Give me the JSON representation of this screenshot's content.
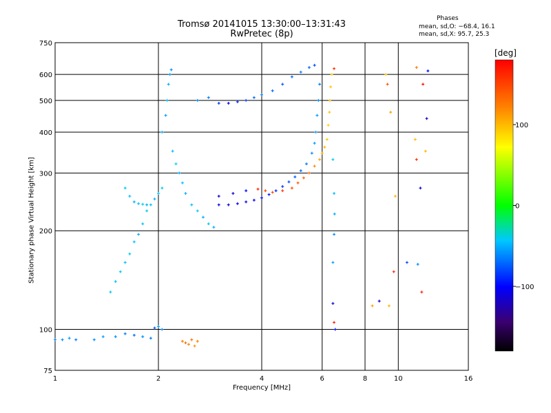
{
  "chart_data": {
    "type": "scatter",
    "title": "Tromsø 20141015 13:30:00–13:31:43",
    "subtitle": "RwPretec (8p)",
    "phase_box": {
      "heading": "Phases",
      "line_o": "mean, sd,O: −68.4, 16.1",
      "line_x": "mean, sd,X:  95.7, 25.3"
    },
    "xlabel": "Frequency [MHz]",
    "ylabel": "Stationary phase Virtual Height [km]",
    "xscale": "log",
    "yscale": "log",
    "xlim": [
      1,
      16
    ],
    "ylim": [
      75,
      750
    ],
    "x_ticks": [
      1,
      2,
      4,
      6,
      8,
      10,
      16
    ],
    "x_tick_labels": [
      "1",
      "2",
      "4",
      "6",
      "8",
      "10",
      "16"
    ],
    "y_ticks": [
      75,
      100,
      200,
      300,
      400,
      500,
      600,
      750
    ],
    "y_tick_labels": [
      "75",
      "100",
      "200",
      "300",
      "400",
      "500",
      "600",
      "750"
    ],
    "grid": true,
    "colorbar": {
      "label": "[deg]",
      "range": [
        -180,
        180
      ],
      "ticks": [
        100,
        0,
        -100
      ],
      "tick_labels": [
        "100",
        "0",
        "−100"
      ]
    },
    "point_size_note": "small colored crosses",
    "series": [
      {
        "values": [
          [
            1.0,
            93,
            -60
          ],
          [
            1.05,
            93,
            -60
          ],
          [
            1.1,
            94,
            -55
          ],
          [
            1.15,
            93,
            -65
          ],
          [
            1.3,
            93,
            -60
          ],
          [
            1.38,
            95,
            -55
          ],
          [
            1.5,
            95,
            -60
          ],
          [
            1.6,
            97,
            -65
          ],
          [
            1.7,
            96,
            -70
          ],
          [
            1.8,
            95,
            -60
          ],
          [
            1.9,
            94,
            -65
          ],
          [
            1.95,
            101,
            -75
          ],
          [
            2.0,
            102,
            -55
          ],
          [
            2.05,
            100,
            -60
          ]
        ]
      },
      {
        "values": [
          [
            2.35,
            92,
            125
          ],
          [
            2.4,
            91,
            130
          ],
          [
            2.45,
            90,
            120
          ],
          [
            2.5,
            93,
            128
          ],
          [
            2.55,
            89,
            115
          ],
          [
            2.6,
            92,
            122
          ]
        ]
      },
      {
        "values": [
          [
            1.45,
            130,
            -40
          ],
          [
            1.5,
            140,
            -45
          ],
          [
            1.55,
            150,
            -40
          ],
          [
            1.6,
            160,
            -45
          ],
          [
            1.65,
            170,
            -40
          ],
          [
            1.7,
            185,
            -45
          ],
          [
            1.75,
            195,
            -50
          ],
          [
            1.8,
            210,
            -45
          ],
          [
            1.85,
            230,
            -40
          ],
          [
            1.9,
            240,
            -45
          ],
          [
            1.95,
            250,
            -50
          ],
          [
            2.0,
            260,
            -45
          ],
          [
            2.05,
            270,
            -40
          ]
        ]
      },
      {
        "values": [
          [
            1.6,
            270,
            -40
          ],
          [
            1.65,
            255,
            -45
          ],
          [
            1.7,
            245,
            -50
          ],
          [
            1.75,
            242,
            -45
          ],
          [
            1.8,
            241,
            -40
          ],
          [
            1.85,
            240,
            -50
          ]
        ]
      },
      {
        "values": [
          [
            2.05,
            400,
            -50
          ],
          [
            2.1,
            450,
            -55
          ],
          [
            2.12,
            500,
            -45
          ],
          [
            2.14,
            560,
            -50
          ],
          [
            2.16,
            600,
            -55
          ],
          [
            2.18,
            620,
            -60
          ],
          [
            2.2,
            350,
            -45
          ],
          [
            2.25,
            320,
            -40
          ],
          [
            2.3,
            300,
            -50
          ],
          [
            2.35,
            280,
            -45
          ],
          [
            2.4,
            260,
            -50
          ],
          [
            2.5,
            240,
            -45
          ],
          [
            2.6,
            230,
            -40
          ],
          [
            2.7,
            220,
            -50
          ],
          [
            2.8,
            210,
            -45
          ],
          [
            2.9,
            205,
            -50
          ]
        ]
      },
      {
        "values": [
          [
            2.6,
            500,
            -60
          ],
          [
            2.8,
            510,
            -65
          ],
          [
            3.0,
            490,
            -85
          ],
          [
            3.2,
            490,
            -100
          ],
          [
            3.4,
            495,
            -90
          ],
          [
            3.6,
            500,
            -80
          ],
          [
            3.8,
            510,
            -70
          ],
          [
            4.0,
            520,
            -65
          ],
          [
            4.3,
            535,
            -70
          ],
          [
            4.6,
            560,
            -75
          ],
          [
            4.9,
            590,
            -70
          ],
          [
            5.2,
            610,
            -65
          ],
          [
            5.5,
            630,
            -70
          ],
          [
            5.7,
            640,
            -80
          ]
        ]
      },
      {
        "values": [
          [
            3.0,
            240,
            -110
          ],
          [
            3.2,
            240,
            -115
          ],
          [
            3.4,
            242,
            -100
          ],
          [
            3.6,
            245,
            -110
          ],
          [
            3.8,
            248,
            -105
          ],
          [
            4.0,
            252,
            -100
          ],
          [
            4.2,
            258,
            -95
          ],
          [
            4.4,
            265,
            -90
          ],
          [
            4.6,
            273,
            -85
          ],
          [
            4.8,
            282,
            -80
          ],
          [
            5.0,
            292,
            -75
          ],
          [
            5.2,
            305,
            -70
          ],
          [
            5.4,
            320,
            -65
          ],
          [
            5.6,
            345,
            -60
          ],
          [
            5.7,
            370,
            -55
          ],
          [
            5.75,
            400,
            -55
          ],
          [
            5.8,
            450,
            -55
          ],
          [
            5.85,
            500,
            -60
          ],
          [
            5.9,
            560,
            -65
          ]
        ]
      },
      {
        "values": [
          [
            3.0,
            255,
            -115
          ],
          [
            3.3,
            260,
            -110
          ],
          [
            3.6,
            265,
            -100
          ],
          [
            3.9,
            268,
            165
          ],
          [
            4.1,
            265,
            150
          ],
          [
            4.3,
            262,
            145
          ],
          [
            4.6,
            265,
            155
          ],
          [
            4.9,
            270,
            145
          ],
          [
            5.1,
            280,
            140
          ],
          [
            5.3,
            290,
            135
          ],
          [
            5.5,
            300,
            128
          ],
          [
            5.7,
            315,
            120
          ],
          [
            5.9,
            330,
            110
          ],
          [
            6.0,
            345,
            105
          ],
          [
            6.1,
            360,
            100
          ],
          [
            6.2,
            380,
            95
          ],
          [
            6.25,
            420,
            90
          ],
          [
            6.3,
            460,
            95
          ],
          [
            6.32,
            500,
            100
          ],
          [
            6.35,
            550,
            95
          ],
          [
            6.4,
            600,
            90
          ]
        ]
      },
      {
        "values": [
          [
            6.45,
            330,
            -40
          ],
          [
            6.5,
            260,
            -45
          ],
          [
            6.52,
            225,
            -50
          ],
          [
            6.5,
            195,
            -60
          ],
          [
            6.45,
            160,
            -55
          ],
          [
            6.45,
            120,
            -110
          ],
          [
            6.5,
            105,
            165
          ],
          [
            6.55,
            100,
            -95
          ],
          [
            6.5,
            625,
            160
          ]
        ]
      },
      {
        "values": [
          [
            8.4,
            118,
            110
          ],
          [
            8.8,
            122,
            -120
          ],
          [
            9.4,
            118,
            100
          ],
          [
            9.7,
            150,
            160
          ],
          [
            9.5,
            460,
            110
          ],
          [
            9.3,
            560,
            140
          ],
          [
            9.2,
            600,
            95
          ],
          [
            9.8,
            255,
            100
          ],
          [
            10.6,
            160,
            -80
          ],
          [
            11.4,
            158,
            -60
          ],
          [
            11.7,
            130,
            165
          ],
          [
            11.6,
            270,
            -115
          ],
          [
            11.3,
            330,
            160
          ],
          [
            11.2,
            380,
            100
          ],
          [
            11.3,
            630,
            125
          ],
          [
            12.2,
            615,
            -100
          ],
          [
            12.1,
            440,
            -120
          ],
          [
            11.8,
            560,
            175
          ],
          [
            12.0,
            350,
            100
          ]
        ]
      }
    ]
  }
}
